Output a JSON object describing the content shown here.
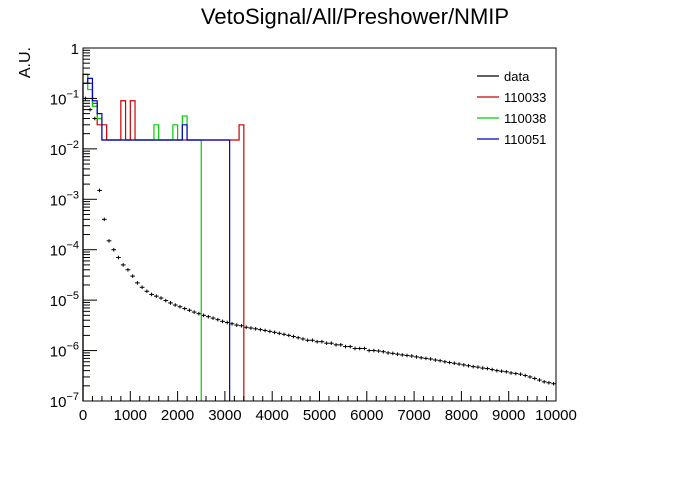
{
  "chart_data": {
    "type": "histogram",
    "title": "VetoSignal/All/Preshower/NMIP",
    "xlabel": "",
    "ylabel": "A.U.",
    "xlim": [
      0,
      10000
    ],
    "ylim": [
      1e-07,
      1
    ],
    "yscale": "log",
    "grid": false,
    "legend_position": "top-right",
    "x_ticks": [
      0,
      1000,
      2000,
      3000,
      4000,
      5000,
      6000,
      7000,
      8000,
      9000,
      10000
    ],
    "y_ticks": [
      {
        "value": 1e-07,
        "base": "10",
        "exp": "−7"
      },
      {
        "value": 1e-06,
        "base": "10",
        "exp": "−6"
      },
      {
        "value": 1e-05,
        "base": "10",
        "exp": "−5"
      },
      {
        "value": 0.0001,
        "base": "10",
        "exp": "−4"
      },
      {
        "value": 0.001,
        "base": "10",
        "exp": "−3"
      },
      {
        "value": 0.01,
        "base": "10",
        "exp": "−2"
      },
      {
        "value": 0.1,
        "base": "10",
        "exp": "−1"
      },
      {
        "value": 1,
        "base": "1",
        "exp": ""
      }
    ],
    "series": [
      {
        "name": "data",
        "color": "#000000",
        "style": "errorbars",
        "bin_width": 100,
        "values": [
          [
            50,
            0.1
          ],
          [
            150,
            0.06
          ],
          [
            250,
            0.04
          ],
          [
            350,
            0.0015
          ],
          [
            450,
            0.0004
          ],
          [
            550,
            0.00015
          ],
          [
            650,
            0.0001
          ],
          [
            750,
            7e-05
          ],
          [
            850,
            5e-05
          ],
          [
            950,
            4e-05
          ],
          [
            1050,
            3e-05
          ],
          [
            1150,
            2.2e-05
          ],
          [
            1250,
            1.8e-05
          ],
          [
            1350,
            1.5e-05
          ],
          [
            1450,
            1.3e-05
          ],
          [
            1550,
            1.2e-05
          ],
          [
            1650,
            1.1e-05
          ],
          [
            1750,
            9.8e-06
          ],
          [
            1850,
            8.8e-06
          ],
          [
            1950,
            8e-06
          ],
          [
            2050,
            7.4e-06
          ],
          [
            2150,
            6.8e-06
          ],
          [
            2250,
            6.3e-06
          ],
          [
            2350,
            5.8e-06
          ],
          [
            2450,
            5.4e-06
          ],
          [
            2550,
            5e-06
          ],
          [
            2650,
            4.7e-06
          ],
          [
            2750,
            4.4e-06
          ],
          [
            2850,
            4.1e-06
          ],
          [
            2950,
            3.8e-06
          ],
          [
            3050,
            3.6e-06
          ],
          [
            3150,
            3.4e-06
          ],
          [
            3250,
            3.2e-06
          ],
          [
            3350,
            3.1e-06
          ],
          [
            3450,
            2.9e-06
          ],
          [
            3550,
            2.8e-06
          ],
          [
            3650,
            2.7e-06
          ],
          [
            3750,
            2.6e-06
          ],
          [
            3850,
            2.5e-06
          ],
          [
            3950,
            2.4e-06
          ],
          [
            4050,
            2.3e-06
          ],
          [
            4150,
            2.2e-06
          ],
          [
            4250,
            2.1e-06
          ],
          [
            4350,
            2e-06
          ],
          [
            4450,
            1.9e-06
          ],
          [
            4550,
            1.8e-06
          ],
          [
            4650,
            1.7e-06
          ],
          [
            4750,
            1.6e-06
          ],
          [
            4850,
            1.6e-06
          ],
          [
            4950,
            1.5e-06
          ],
          [
            5050,
            1.5e-06
          ],
          [
            5150,
            1.4e-06
          ],
          [
            5250,
            1.4e-06
          ],
          [
            5350,
            1.3e-06
          ],
          [
            5450,
            1.3e-06
          ],
          [
            5550,
            1.2e-06
          ],
          [
            5650,
            1.2e-06
          ],
          [
            5750,
            1.1e-06
          ],
          [
            5850,
            1.1e-06
          ],
          [
            5950,
            1.1e-06
          ],
          [
            6050,
            1e-06
          ],
          [
            6150,
            1e-06
          ],
          [
            6250,
            9.8e-07
          ],
          [
            6350,
            9.5e-07
          ],
          [
            6450,
            9e-07
          ],
          [
            6550,
            8.8e-07
          ],
          [
            6650,
            8.5e-07
          ],
          [
            6750,
            8.2e-07
          ],
          [
            6850,
            8e-07
          ],
          [
            6950,
            7.8e-07
          ],
          [
            7050,
            7.5e-07
          ],
          [
            7150,
            7.2e-07
          ],
          [
            7250,
            7e-07
          ],
          [
            7350,
            6.8e-07
          ],
          [
            7450,
            6.5e-07
          ],
          [
            7550,
            6.3e-07
          ],
          [
            7650,
            6e-07
          ],
          [
            7750,
            5.8e-07
          ],
          [
            7850,
            5.6e-07
          ],
          [
            7950,
            5.4e-07
          ],
          [
            8050,
            5.2e-07
          ],
          [
            8150,
            5e-07
          ],
          [
            8250,
            4.8e-07
          ],
          [
            8350,
            4.7e-07
          ],
          [
            8450,
            4.5e-07
          ],
          [
            8550,
            4.4e-07
          ],
          [
            8650,
            4.2e-07
          ],
          [
            8750,
            4e-07
          ],
          [
            8850,
            3.9e-07
          ],
          [
            8950,
            3.8e-07
          ],
          [
            9050,
            3.6e-07
          ],
          [
            9150,
            3.5e-07
          ],
          [
            9250,
            3.4e-07
          ],
          [
            9350,
            3.2e-07
          ],
          [
            9450,
            3e-07
          ],
          [
            9550,
            2.8e-07
          ],
          [
            9650,
            2.6e-07
          ],
          [
            9750,
            2.4e-07
          ],
          [
            9850,
            2.3e-07
          ],
          [
            9950,
            2.2e-07
          ]
        ]
      },
      {
        "name": "110033",
        "color": "#cc0000",
        "style": "step",
        "bin_width": 100,
        "values": [
          [
            50,
            0.3
          ],
          [
            150,
            0.2
          ],
          [
            250,
            0.08
          ],
          [
            350,
            0.03
          ],
          [
            450,
            0.03
          ],
          [
            550,
            0.015
          ],
          [
            650,
            0.015
          ],
          [
            750,
            0.015
          ],
          [
            850,
            0.09
          ],
          [
            950,
            0.015
          ],
          [
            1050,
            0.09
          ],
          [
            1150,
            0.015
          ],
          [
            1250,
            0.015
          ],
          [
            1350,
            0.015
          ],
          [
            1450,
            0.015
          ],
          [
            1550,
            0.015
          ],
          [
            1650,
            0.015
          ],
          [
            1750,
            0.015
          ],
          [
            1850,
            0.015
          ],
          [
            1950,
            0.015
          ],
          [
            2050,
            0.015
          ],
          [
            2150,
            0.015
          ],
          [
            2250,
            0.015
          ],
          [
            2350,
            0.015
          ],
          [
            2450,
            0.015
          ],
          [
            2550,
            0.015
          ],
          [
            2650,
            0.015
          ],
          [
            2750,
            0.015
          ],
          [
            2850,
            0.015
          ],
          [
            2950,
            0.015
          ],
          [
            3050,
            0.015
          ],
          [
            3150,
            0.015
          ],
          [
            3250,
            0.015
          ],
          [
            3350,
            0.03
          ]
        ]
      },
      {
        "name": "110038",
        "color": "#00cc00",
        "style": "step",
        "bin_width": 100,
        "values": [
          [
            50,
            0.3
          ],
          [
            150,
            0.15
          ],
          [
            250,
            0.07
          ],
          [
            350,
            0.04
          ],
          [
            450,
            0.015
          ],
          [
            550,
            0.015
          ],
          [
            650,
            0.015
          ],
          [
            750,
            0.015
          ],
          [
            850,
            0.015
          ],
          [
            950,
            0.015
          ],
          [
            1050,
            0.015
          ],
          [
            1150,
            0.015
          ],
          [
            1250,
            0.015
          ],
          [
            1350,
            0.015
          ],
          [
            1450,
            0.015
          ],
          [
            1550,
            0.03
          ],
          [
            1650,
            0.015
          ],
          [
            1750,
            0.015
          ],
          [
            1850,
            0.015
          ],
          [
            1950,
            0.03
          ],
          [
            2050,
            0.015
          ],
          [
            2150,
            0.045
          ],
          [
            2250,
            0.015
          ],
          [
            2350,
            0.015
          ],
          [
            2450,
            0.015
          ]
        ]
      },
      {
        "name": "110051",
        "color": "#0000cc",
        "style": "step",
        "bin_width": 100,
        "values": [
          [
            50,
            0.2
          ],
          [
            150,
            0.25
          ],
          [
            250,
            0.09
          ],
          [
            350,
            0.05
          ],
          [
            450,
            0.015
          ],
          [
            550,
            0.015
          ],
          [
            650,
            0.015
          ],
          [
            750,
            0.015
          ],
          [
            850,
            0.015
          ],
          [
            950,
            0.015
          ],
          [
            1050,
            0.015
          ],
          [
            1150,
            0.015
          ],
          [
            1250,
            0.015
          ],
          [
            1350,
            0.015
          ],
          [
            1450,
            0.015
          ],
          [
            1550,
            0.015
          ],
          [
            1650,
            0.015
          ],
          [
            1750,
            0.015
          ],
          [
            1850,
            0.015
          ],
          [
            1950,
            0.015
          ],
          [
            2050,
            0.015
          ],
          [
            2150,
            0.03
          ],
          [
            2250,
            0.015
          ],
          [
            2350,
            0.015
          ],
          [
            2450,
            0.015
          ],
          [
            2550,
            0.015
          ],
          [
            2650,
            0.015
          ],
          [
            2750,
            0.015
          ],
          [
            2850,
            0.015
          ],
          [
            2950,
            0.015
          ],
          [
            3050,
            0.015
          ]
        ]
      }
    ]
  }
}
